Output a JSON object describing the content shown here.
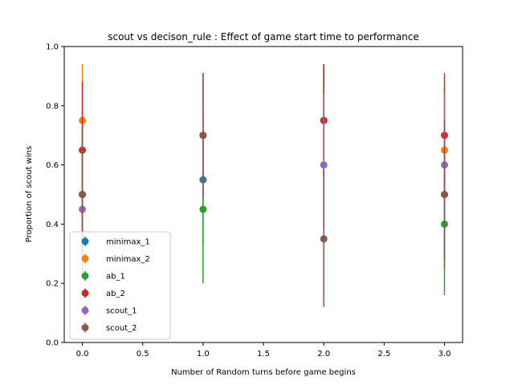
{
  "chart_data": {
    "type": "scatter",
    "title": "scout vs decison_rule : Effect of game start time to performance",
    "xlabel": "Number of Random turns before game begins",
    "ylabel": "Proportion of scout wins",
    "xlim": [
      -0.15,
      3.15
    ],
    "ylim": [
      0.0,
      1.0
    ],
    "xticks": [
      0.0,
      0.5,
      1.0,
      1.5,
      2.0,
      2.5,
      3.0
    ],
    "xtick_labels": [
      "0.0",
      "0.5",
      "1.0",
      "1.5",
      "2.0",
      "2.5",
      "3.0"
    ],
    "yticks": [
      0.0,
      0.2,
      0.4,
      0.6,
      0.8,
      1.0
    ],
    "ytick_labels": [
      "0.0",
      "0.2",
      "0.4",
      "0.6",
      "0.8",
      "1.0"
    ],
    "grid": false,
    "legend_position": "lower-left",
    "error_bars": true,
    "series": [
      {
        "name": "minimax_1",
        "color": "#1f77b4",
        "points": [
          {
            "x": 0,
            "y": 0.5,
            "err_low": 0.28,
            "err_high": 0.72
          },
          {
            "x": 1,
            "y": 0.55,
            "err_low": 0.33,
            "err_high": 0.77
          },
          {
            "x": 2,
            "y": 0.75,
            "err_low": 0.56,
            "err_high": 0.94
          },
          {
            "x": 3,
            "y": 0.5,
            "err_low": 0.28,
            "err_high": 0.72
          }
        ]
      },
      {
        "name": "minimax_2",
        "color": "#ff7f0e",
        "points": [
          {
            "x": 0,
            "y": 0.75,
            "err_low": 0.56,
            "err_high": 0.94
          },
          {
            "x": 1,
            "y": 0.7,
            "err_low": 0.49,
            "err_high": 0.91
          },
          {
            "x": 2,
            "y": 0.75,
            "err_low": 0.56,
            "err_high": 0.94
          },
          {
            "x": 3,
            "y": 0.65,
            "err_low": 0.44,
            "err_high": 0.86
          }
        ]
      },
      {
        "name": "ab_1",
        "color": "#2ca02c",
        "points": [
          {
            "x": 0,
            "y": 0.5,
            "err_low": 0.28,
            "err_high": 0.72
          },
          {
            "x": 1,
            "y": 0.45,
            "err_low": 0.2,
            "err_high": 0.68
          },
          {
            "x": 2,
            "y": 0.75,
            "err_low": 0.56,
            "err_high": 0.94
          },
          {
            "x": 3,
            "y": 0.4,
            "err_low": 0.16,
            "err_high": 0.62
          }
        ]
      },
      {
        "name": "ab_2",
        "color": "#d62728",
        "points": [
          {
            "x": 0,
            "y": 0.65,
            "err_low": 0.43,
            "err_high": 0.88
          },
          {
            "x": 1,
            "y": 0.7,
            "err_low": 0.49,
            "err_high": 0.91
          },
          {
            "x": 2,
            "y": 0.75,
            "err_low": 0.56,
            "err_high": 0.94
          },
          {
            "x": 3,
            "y": 0.7,
            "err_low": 0.49,
            "err_high": 0.91
          }
        ]
      },
      {
        "name": "scout_1",
        "color": "#9467bd",
        "points": [
          {
            "x": 0,
            "y": 0.45,
            "err_low": 0.23,
            "err_high": 0.67
          },
          {
            "x": 1,
            "y": 0.7,
            "err_low": 0.49,
            "err_high": 0.91
          },
          {
            "x": 2,
            "y": 0.6,
            "err_low": 0.38,
            "err_high": 0.84
          },
          {
            "x": 3,
            "y": 0.6,
            "err_low": 0.38,
            "err_high": 0.84
          }
        ]
      },
      {
        "name": "scout_2",
        "color": "#8c564b",
        "points": [
          {
            "x": 0,
            "y": 0.5,
            "err_low": 0.28,
            "err_high": 0.72
          },
          {
            "x": 1,
            "y": 0.7,
            "err_low": 0.49,
            "err_high": 0.91
          },
          {
            "x": 2,
            "y": 0.35,
            "err_low": 0.12,
            "err_high": 0.58
          },
          {
            "x": 3,
            "y": 0.5,
            "err_low": 0.25,
            "err_high": 0.75
          }
        ]
      }
    ]
  }
}
